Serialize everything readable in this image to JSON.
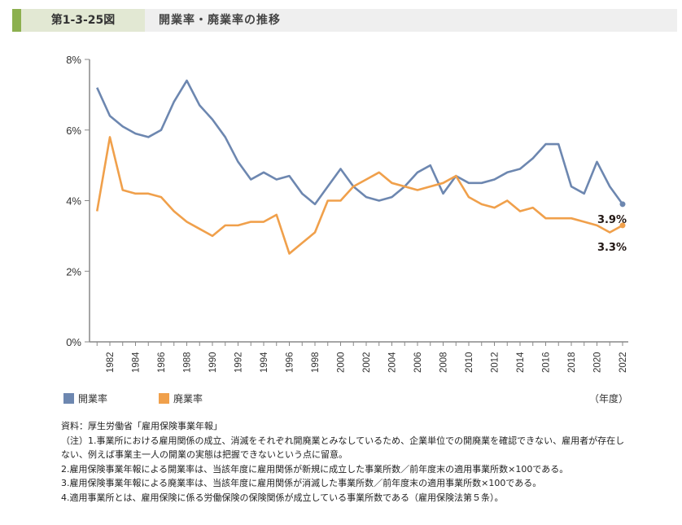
{
  "header": {
    "figure_number": "第1-3-25図",
    "title": "開業率・廃業率の推移"
  },
  "chart_data": {
    "type": "line",
    "x": [
      1981,
      1982,
      1983,
      1984,
      1985,
      1986,
      1987,
      1988,
      1989,
      1990,
      1991,
      1992,
      1993,
      1994,
      1995,
      1996,
      1997,
      1998,
      1999,
      2000,
      2001,
      2002,
      2003,
      2004,
      2005,
      2006,
      2007,
      2008,
      2009,
      2010,
      2011,
      2012,
      2013,
      2014,
      2015,
      2016,
      2017,
      2018,
      2019,
      2020,
      2021,
      2022
    ],
    "x_tick_labels": [
      "1982",
      "1984",
      "1986",
      "1988",
      "1990",
      "1992",
      "1994",
      "1996",
      "1998",
      "2000",
      "2002",
      "2004",
      "2006",
      "2008",
      "2010",
      "2012",
      "2014",
      "2016",
      "2018",
      "2020",
      "2022"
    ],
    "y_tick_labels": [
      "0%",
      "2%",
      "4%",
      "6%",
      "8%"
    ],
    "ylim": [
      0,
      8
    ],
    "xlabel": "（年度）",
    "series": [
      {
        "name": "開業率",
        "color": "#6d87b0",
        "values": [
          7.2,
          6.4,
          6.1,
          5.9,
          5.8,
          6.0,
          6.8,
          7.4,
          6.7,
          6.3,
          5.8,
          5.1,
          4.6,
          4.8,
          4.6,
          4.7,
          4.2,
          3.9,
          4.4,
          4.9,
          4.4,
          4.1,
          4.0,
          4.1,
          4.4,
          4.8,
          5.0,
          4.2,
          4.7,
          4.5,
          4.5,
          4.6,
          4.8,
          4.9,
          5.2,
          5.6,
          5.6,
          4.4,
          4.2,
          5.1,
          4.4,
          3.9
        ],
        "end_label": "3.9%"
      },
      {
        "name": "廃業率",
        "color": "#f0a04b",
        "values": [
          3.7,
          5.8,
          4.3,
          4.2,
          4.2,
          4.1,
          3.7,
          3.4,
          3.2,
          3.0,
          3.3,
          3.3,
          3.4,
          3.4,
          3.6,
          2.5,
          2.8,
          3.1,
          4.0,
          4.0,
          4.4,
          4.6,
          4.8,
          4.5,
          4.4,
          4.3,
          4.4,
          4.5,
          4.7,
          4.1,
          3.9,
          3.8,
          4.0,
          3.7,
          3.8,
          3.5,
          3.5,
          3.5,
          3.4,
          3.3,
          3.1,
          3.3
        ],
        "end_label": "3.3%"
      }
    ],
    "grid": false,
    "legend": "bottom-left"
  },
  "notes": [
    "資料：厚生労働省「雇用保険事業年報」",
    "（注）1.事業所における雇用関係の成立、消滅をそれぞれ開廃業とみなしているため、企業単位での開廃業を確認できない、雇用者が存在しない、例えば事業主一人の開業の実態は把握できないという点に留意。",
    "2.雇用保険事業年報による開業率は、当該年度に雇用関係が新規に成立した事業所数／前年度末の適用事業所数×100である。",
    "3.雇用保険事業年報による廃業率は、当該年度に雇用関係が消滅した事業所数／前年度末の適用事業所数×100である。",
    "4.適用事業所とは、雇用保険に係る労働保険の保険関係が成立している事業所数である（雇用保険法第５条）。"
  ]
}
